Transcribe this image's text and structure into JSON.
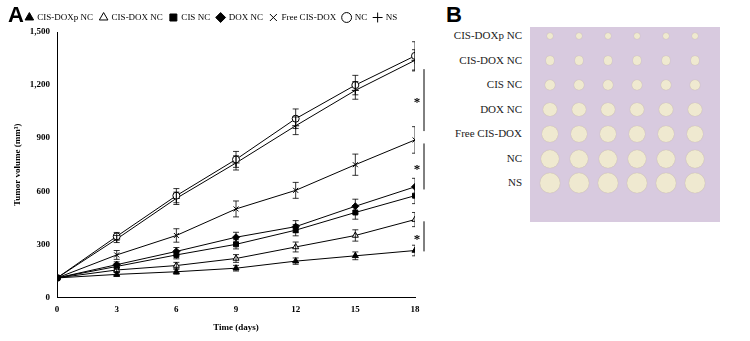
{
  "chart_data": {
    "type": "line",
    "x_label": "Time (days)",
    "y_label": "Tumor volume (mm³)",
    "x": [
      0,
      3,
      6,
      9,
      12,
      15,
      18
    ],
    "xlim": [
      0,
      18
    ],
    "xticks": [
      0,
      3,
      6,
      9,
      12,
      15,
      18
    ],
    "ylim": [
      0,
      1500
    ],
    "yticks": [
      0,
      300,
      600,
      900,
      1200,
      1500
    ],
    "grid": false,
    "legend": "top",
    "series": [
      {
        "name": "CIS-DOXp NC",
        "color": "#000000",
        "marker": "triangle",
        "line_style": "solid",
        "values": [
          110,
          130,
          145,
          165,
          205,
          235,
          265
        ],
        "errors": [
          8,
          12,
          14,
          16,
          18,
          22,
          30
        ]
      },
      {
        "name": "CIS-DOX NC",
        "color": "#000000",
        "marker": "triangle_open",
        "line_style": "solid",
        "values": [
          110,
          155,
          180,
          220,
          285,
          350,
          440
        ],
        "errors": [
          8,
          14,
          18,
          22,
          28,
          32,
          40
        ]
      },
      {
        "name": "CIS NC",
        "color": "#000000",
        "marker": "square",
        "line_style": "solid",
        "values": [
          110,
          175,
          240,
          300,
          380,
          480,
          575
        ],
        "errors": [
          8,
          16,
          22,
          26,
          32,
          38,
          45
        ]
      },
      {
        "name": "DOX NC",
        "color": "#000000",
        "marker": "diamond",
        "line_style": "solid",
        "values": [
          110,
          185,
          260,
          340,
          400,
          515,
          625
        ],
        "errors": [
          8,
          16,
          22,
          28,
          34,
          40,
          48
        ]
      },
      {
        "name": "Free CIS-DOX",
        "color": "#000000",
        "marker": "x",
        "line_style": "solid",
        "values": [
          110,
          240,
          350,
          500,
          605,
          750,
          890
        ],
        "errors": [
          8,
          25,
          38,
          45,
          45,
          60,
          75
        ]
      },
      {
        "name": "NC",
        "color": "#000000",
        "marker": "circle_open",
        "line_style": "solid",
        "values": [
          110,
          345,
          575,
          780,
          1010,
          1200,
          1365
        ],
        "errors": [
          8,
          22,
          40,
          45,
          55,
          55,
          80
        ]
      },
      {
        "name": "NS",
        "color": "#000000",
        "marker": "plus",
        "line_style": "solid",
        "values": [
          110,
          330,
          560,
          760,
          970,
          1170,
          1340
        ],
        "errors": [
          8,
          20,
          35,
          40,
          50,
          50,
          60
        ]
      }
    ],
    "annotations": [
      {
        "text": "*",
        "x": 18,
        "y_from": 1290,
        "y_to": 940
      },
      {
        "text": "*",
        "x": 18,
        "y_from": 870,
        "y_to": 610
      },
      {
        "text": "*",
        "x": 18,
        "y_from": 430,
        "y_to": 260
      }
    ]
  },
  "panel_labels": [
    "A",
    "B"
  ],
  "photo": {
    "rows": [
      "CIS-DOXp NC",
      "CIS-DOX NC",
      "CIS NC",
      "DOX NC",
      "Free CIS-DOX",
      "NC",
      "NS"
    ]
  }
}
